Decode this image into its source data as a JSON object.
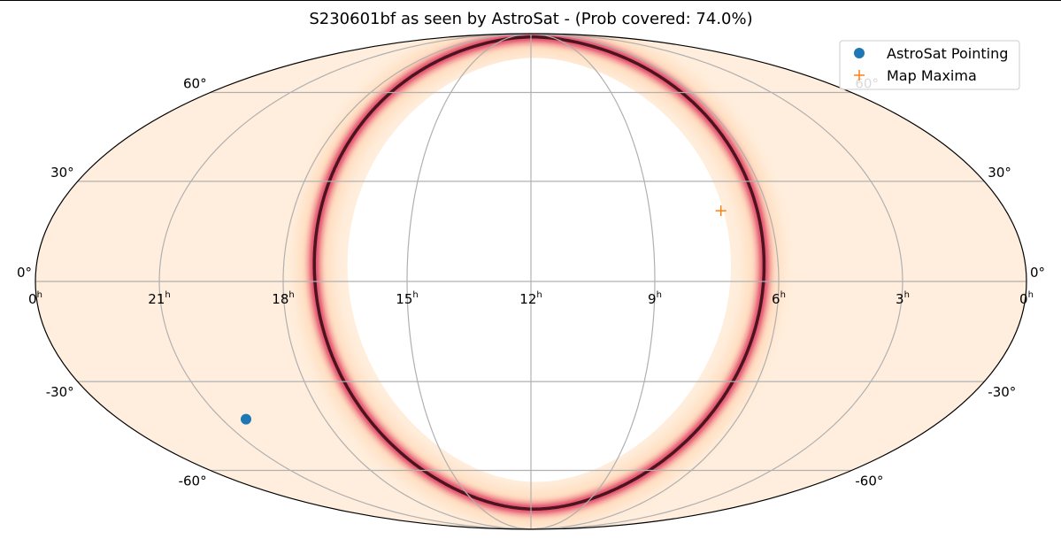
{
  "chart_data": {
    "type": "scatter",
    "projection": "mollweide",
    "title": "S230601bf as seen by AstroSat - (Prob covered: 74.0%)",
    "x_tick_labels": [
      {
        "hours": 24,
        "label": "0",
        "sup": "h"
      },
      {
        "hours": 21,
        "label": "21",
        "sup": "h"
      },
      {
        "hours": 18,
        "label": "18",
        "sup": "h"
      },
      {
        "hours": 15,
        "label": "15",
        "sup": "h"
      },
      {
        "hours": 12,
        "label": "12",
        "sup": "h"
      },
      {
        "hours": 9,
        "label": "9",
        "sup": "h"
      },
      {
        "hours": 6,
        "label": "6",
        "sup": "h"
      },
      {
        "hours": 3,
        "label": "3",
        "sup": "h"
      },
      {
        "hours": 0,
        "label": "0",
        "sup": "h"
      }
    ],
    "y_tick_labels": [
      {
        "deg": 60,
        "label": "60°"
      },
      {
        "deg": 30,
        "label": "30°"
      },
      {
        "deg": 0,
        "label": "0°"
      },
      {
        "deg": -30,
        "label": "-30°"
      },
      {
        "deg": -60,
        "label": "-60°"
      }
    ],
    "meridians_hours": [
      21,
      18,
      15,
      12,
      9,
      6,
      3
    ],
    "parallels_deg": [
      -60,
      -30,
      0,
      30,
      60
    ],
    "grid": true,
    "legend_position": "top-right",
    "series": [
      {
        "name": "AstroSat Pointing",
        "marker": "circle",
        "color": "#1f77b4",
        "points": [
          {
            "ra_hours": 20.3,
            "dec_deg": -42
          }
        ]
      },
      {
        "name": "Map Maxima",
        "marker": "plus",
        "color": "#ff7f0e",
        "points": [
          {
            "ra_hours": 7.2,
            "dec_deg": 21
          }
        ]
      }
    ],
    "occulted_region": {
      "center_ra_hours": 11.8,
      "center_dec_deg": 5,
      "radius_deg": 69.5
    },
    "probability_arc": {
      "hi_color": "#1a000a",
      "mid_color": "#d8174a",
      "lo_color": "#ffd9b8",
      "bg_color": "#ffeedd"
    }
  }
}
